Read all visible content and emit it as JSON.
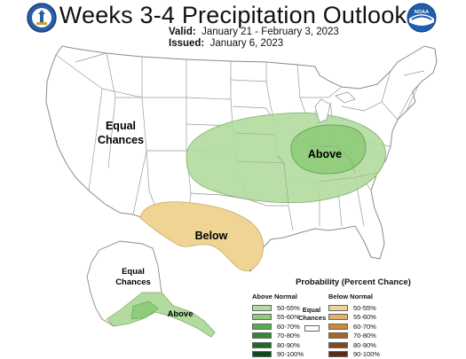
{
  "header": {
    "title": "Weeks 3-4 Precipitation Outlook",
    "valid_label": "Valid:",
    "valid_value": "January 21 - February 3, 2023",
    "issued_label": "Issued:",
    "issued_value": "January 6, 2023"
  },
  "logos": {
    "left_icon": "doc-seal-icon",
    "right_icon": "noaa-logo-icon",
    "right_text": "NOAA"
  },
  "map": {
    "labels": {
      "equal_chances_conus_line1": "Equal",
      "equal_chances_conus_line2": "Chances",
      "above_conus": "Above",
      "below_conus": "Below",
      "equal_chances_ak_line1": "Equal",
      "equal_chances_ak_line2": "Chances",
      "above_ak": "Above"
    }
  },
  "legend": {
    "title": "Probability (Percent Chance)",
    "above_header": "Above Normal",
    "below_header": "Below Normal",
    "equal_line1": "Equal",
    "equal_line2": "Chances",
    "ranges": [
      "50-55%",
      "55-60%",
      "60-70%",
      "70-80%",
      "80-90%",
      "90-100%"
    ],
    "above_colors": [
      "#b3dba0",
      "#8fcc7a",
      "#52b04a",
      "#2e8a35",
      "#1b6a28",
      "#0d4a1a"
    ],
    "below_colors": [
      "#f0d494",
      "#e0b269",
      "#c98a3c",
      "#a8652a",
      "#84471f",
      "#5c2c14"
    ]
  },
  "colors": {
    "above_50_55": "#b3dba0",
    "above_55_60": "#8fcc7a",
    "below_50_55": "#f0d494",
    "boundary": "#9a9a9a"
  }
}
